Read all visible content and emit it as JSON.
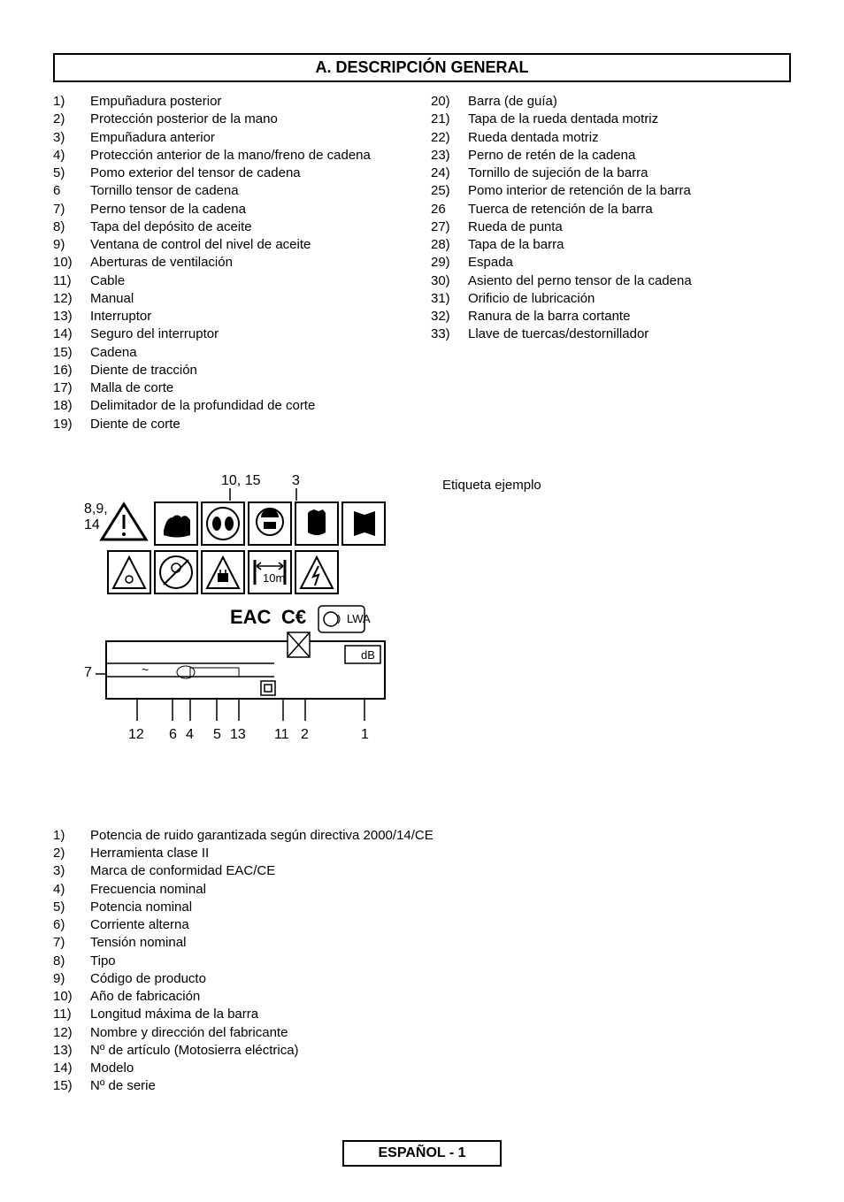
{
  "header": {
    "title": "A. DESCRIPCIÓN GENERAL"
  },
  "listA_left": [
    {
      "n": "1)",
      "t": "Empuñadura posterior"
    },
    {
      "n": "2)",
      "t": "Protección posterior de la mano"
    },
    {
      "n": "3)",
      "t": "Empuñadura anterior"
    },
    {
      "n": "4)",
      "t": "Protección anterior de la mano/freno de cadena"
    },
    {
      "n": "5)",
      "t": "Pomo exterior del tensor de cadena"
    },
    {
      "n": "6",
      "t": "Tornillo tensor de cadena"
    },
    {
      "n": "7)",
      "t": "Perno tensor de la cadena"
    },
    {
      "n": "8)",
      "t": "Tapa del depósito de aceite"
    },
    {
      "n": "9)",
      "t": "Ventana de control del nivel de aceite"
    },
    {
      "n": "10)",
      "t": "Aberturas de ventilación"
    },
    {
      "n": "11)",
      "t": "Cable"
    },
    {
      "n": "12)",
      "t": "Manual"
    },
    {
      "n": "13)",
      "t": "Interruptor"
    },
    {
      "n": "14)",
      "t": "Seguro del interruptor"
    },
    {
      "n": "15)",
      "t": "Cadena"
    },
    {
      "n": "16)",
      "t": "Diente de tracción"
    },
    {
      "n": "17)",
      "t": "Malla de corte"
    },
    {
      "n": "18)",
      "t": "Delimitador de la profundidad de corte"
    },
    {
      "n": "19)",
      "t": "Diente de corte"
    }
  ],
  "listA_right": [
    {
      "n": "20)",
      "t": "Barra (de guía)"
    },
    {
      "n": "21)",
      "t": "Tapa de la rueda dentada motriz"
    },
    {
      "n": "22)",
      "t": "Rueda dentada motriz"
    },
    {
      "n": "23)",
      "t": "Perno de retén de la cadena"
    },
    {
      "n": "24)",
      "t": "Tornillo de sujeción de la barra"
    },
    {
      "n": "25)",
      "t": "Pomo interior de retención de la barra"
    },
    {
      "n": "26",
      "t": "Tuerca de retención de la barra"
    },
    {
      "n": "27)",
      "t": "Rueda de punta"
    },
    {
      "n": "28)",
      "t": "Tapa de la barra"
    },
    {
      "n": "29)",
      "t": "Espada"
    },
    {
      "n": "30)",
      "t": "Asiento del perno tensor de la cadena"
    },
    {
      "n": "31)",
      "t": "Orificio de lubricación"
    },
    {
      "n": "32)",
      "t": "Ranura de la barra cortante"
    },
    {
      "n": "33)",
      "t": "Llave de tuercas/destornillador"
    }
  ],
  "example_label": "Etiqueta ejemplo",
  "listB": [
    {
      "n": "1)",
      "t": "Potencia de ruido garantizada según directiva 2000/14/CE"
    },
    {
      "n": "2)",
      "t": "Herramienta clase II"
    },
    {
      "n": "3)",
      "t": "Marca de conformidad EAC/CE"
    },
    {
      "n": "4)",
      "t": "Frecuencia nominal"
    },
    {
      "n": "5)",
      "t": "Potencia nominal"
    },
    {
      "n": "6)",
      "t": "Corriente alterna"
    },
    {
      "n": "7)",
      "t": "Tensión nominal"
    },
    {
      "n": "8)",
      "t": "Tipo"
    },
    {
      "n": "9)",
      "t": "Código de producto"
    },
    {
      "n": "10)",
      "t": "Año de fabricación"
    },
    {
      "n": "11)",
      "t": "Longitud máxima de la barra"
    },
    {
      "n": "12)",
      "t": "Nombre y dirección del fabricante"
    },
    {
      "n": "13)",
      "t": "Nº de artículo (Motosierra eléctrica)"
    },
    {
      "n": "14)",
      "t": "Modelo"
    },
    {
      "n": "15)",
      "t": "Nº de serie"
    }
  ],
  "footer": "ESPAÑOL - 1",
  "diagram": {
    "callouts_top": "10, 15    3",
    "callout_left": "8,9,\n14",
    "callout_left2": "7",
    "callouts_bottom": "12   6  4    5  13    11  2        1",
    "label_eac": "EAC",
    "label_ce": "C€",
    "label_lwa": "LWA",
    "label_db": "dB",
    "label_10m": "10m",
    "colors": {
      "stroke": "#000000",
      "bg": "#ffffff"
    }
  }
}
